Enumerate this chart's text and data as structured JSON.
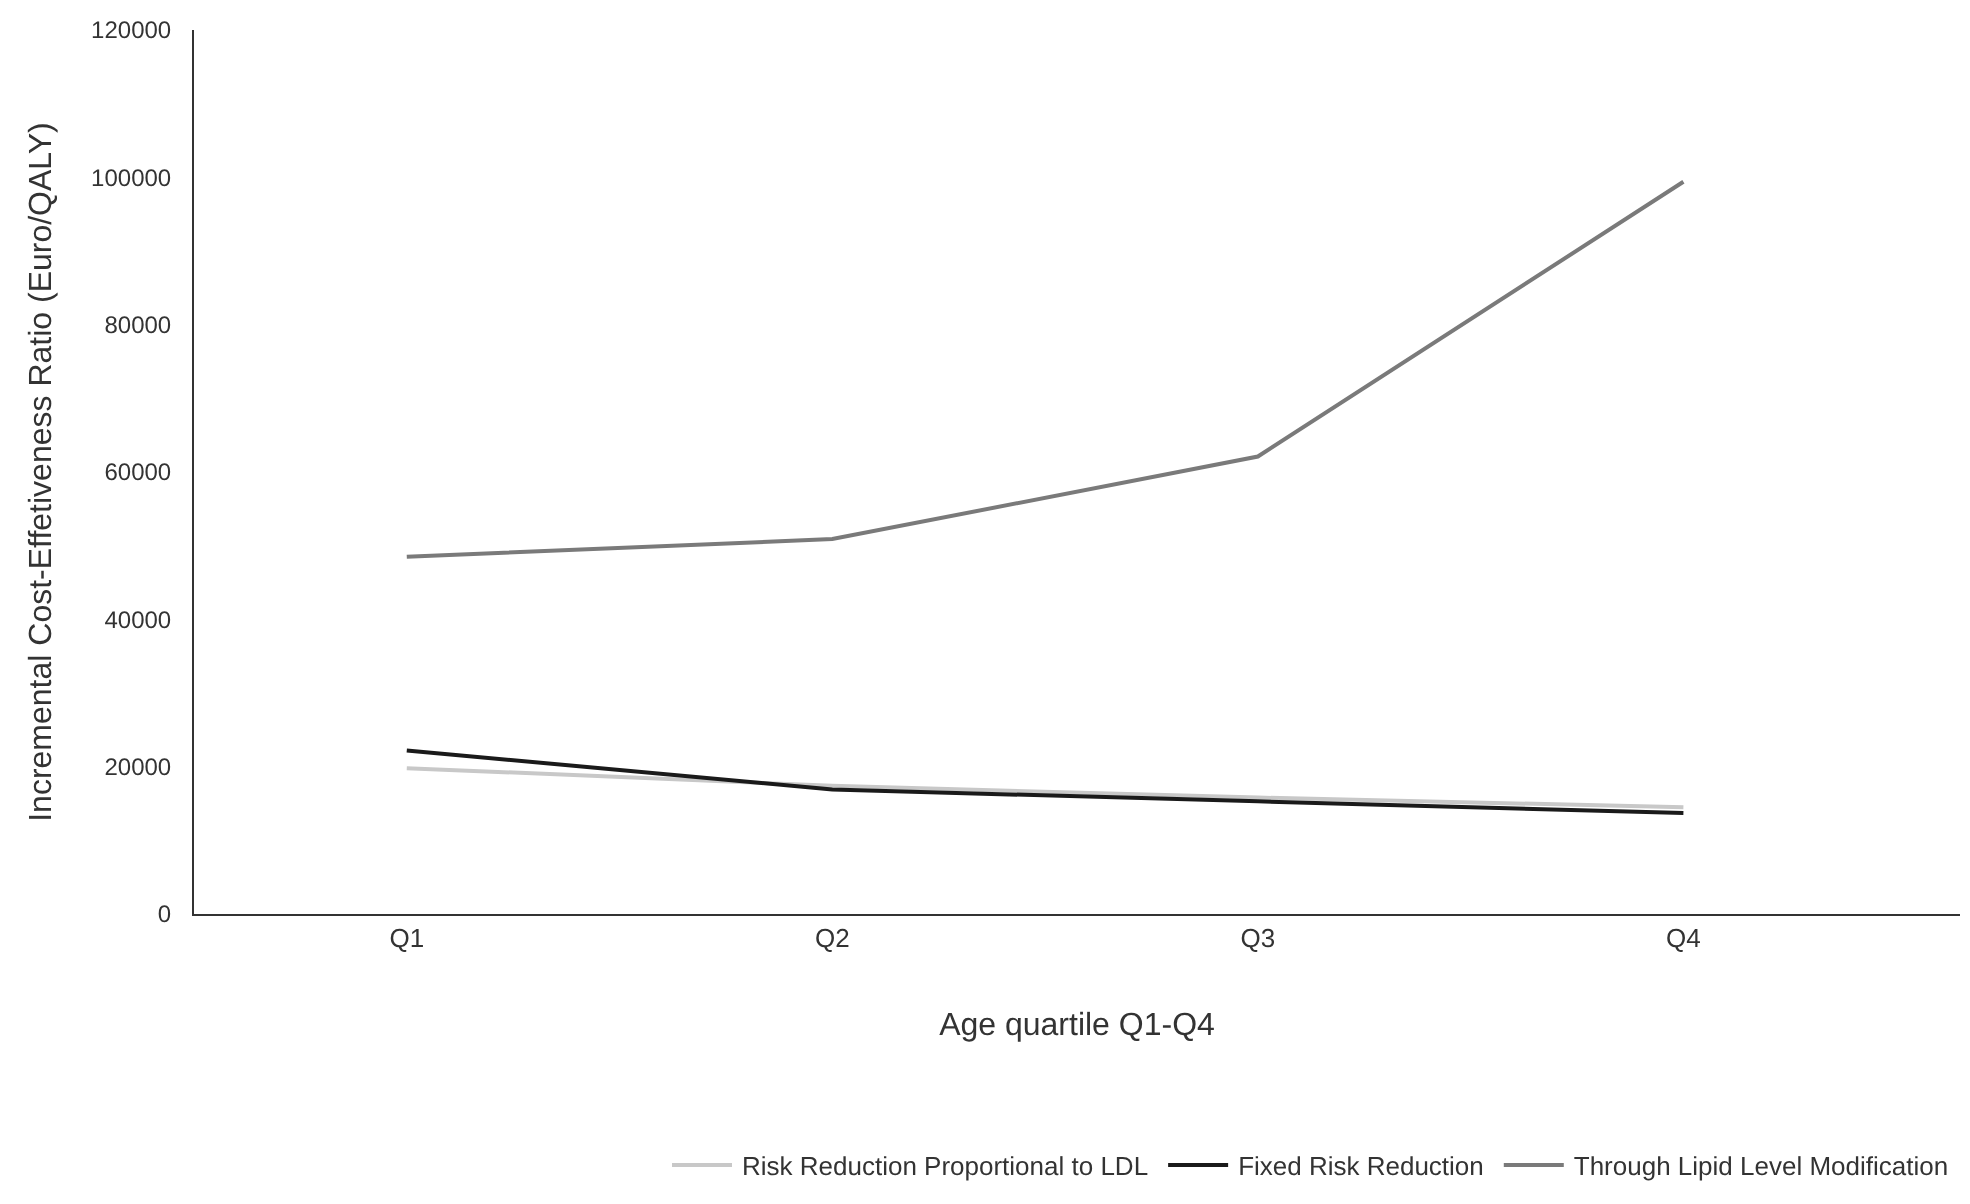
{
  "chart_data": {
    "type": "line",
    "xlabel": "Age quartile Q1-Q4",
    "ylabel": "Incremental Cost-Effetiveness Ratio (Euro/QALY)",
    "categories": [
      "Q1",
      "Q2",
      "Q3",
      "Q4"
    ],
    "series": [
      {
        "name": "Risk Reduction Proportional to LDL",
        "color": "#c8c8c8",
        "values": [
          19800,
          17400,
          15800,
          14500
        ]
      },
      {
        "name": "Fixed Risk Reduction",
        "color": "#1a1a1a",
        "values": [
          22200,
          16900,
          15300,
          13700
        ]
      },
      {
        "name": "Through Lipid Level Modification",
        "color": "#7a7a7a",
        "values": [
          48500,
          50900,
          62100,
          99400
        ]
      }
    ],
    "ylim": [
      0,
      120000
    ],
    "yticks": [
      0,
      20000,
      40000,
      60000,
      80000,
      100000,
      120000
    ],
    "legend": "bottom",
    "marker": "none",
    "line_style": "solid"
  }
}
